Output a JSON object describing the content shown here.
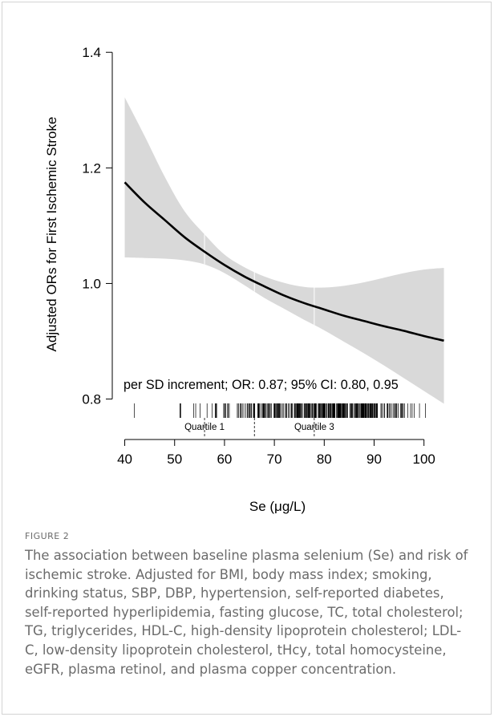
{
  "chart_data": {
    "type": "line",
    "xlabel": "Se (μg/L)",
    "ylabel": "Adjusted ORs for First Ischemic Stroke",
    "xlim": [
      37.5,
      106
    ],
    "ylim": [
      0.73,
      1.435
    ],
    "x_ticks": [
      40,
      50,
      60,
      70,
      80,
      90,
      100
    ],
    "y_ticks": [
      0.8,
      1.0,
      1.2,
      1.4
    ],
    "y_tick_labels": [
      "0.8",
      "1.0",
      "1.2",
      "1.4"
    ],
    "series": [
      {
        "x": [
          40,
          44,
          48,
          52,
          56,
          60,
          64,
          68,
          72,
          76,
          80,
          84,
          88,
          92,
          96,
          100,
          104
        ],
        "values": [
          1.175,
          1.14,
          1.11,
          1.08,
          1.055,
          1.032,
          1.012,
          0.995,
          0.979,
          0.966,
          0.955,
          0.944,
          0.935,
          0.926,
          0.918,
          0.909,
          0.901
        ],
        "ci_lower": [
          1.045,
          1.044,
          1.043,
          1.04,
          1.033,
          1.018,
          0.997,
          0.975,
          0.956,
          0.937,
          0.919,
          0.899,
          0.879,
          0.858,
          0.836,
          0.814,
          0.792
        ],
        "ci_upper": [
          1.322,
          1.255,
          1.185,
          1.125,
          1.085,
          1.05,
          1.028,
          1.012,
          1.001,
          0.994,
          0.993,
          0.996,
          1.002,
          1.01,
          1.018,
          1.024,
          1.027
        ]
      }
    ],
    "annotation": "per SD increment; OR: 0.87; 95% CI: 0.80, 0.95",
    "quartiles": [
      {
        "x": 56,
        "label": "Quartile 1"
      },
      {
        "x": 66,
        "label": ""
      },
      {
        "x": 78,
        "label": "Quartile 3"
      }
    ],
    "ci_color": "#d9d9d9",
    "line_color": "#000000",
    "grid": false
  },
  "caption": {
    "label": "FIGURE 2",
    "text": "The association between baseline plasma selenium (Se) and risk of ischemic stroke. Adjusted for BMI, body mass index; smoking, drinking status, SBP, DBP, hypertension, self-reported diabetes, self-reported hyperlipidemia, fasting glucose, TC, total cholesterol; TG, triglycerides, HDL-C, high-density lipoprotein cholesterol; LDL-C, low-density lipoprotein cholesterol, tHcy, total homocysteine, eGFR, plasma retinol, and plasma copper concentration."
  }
}
